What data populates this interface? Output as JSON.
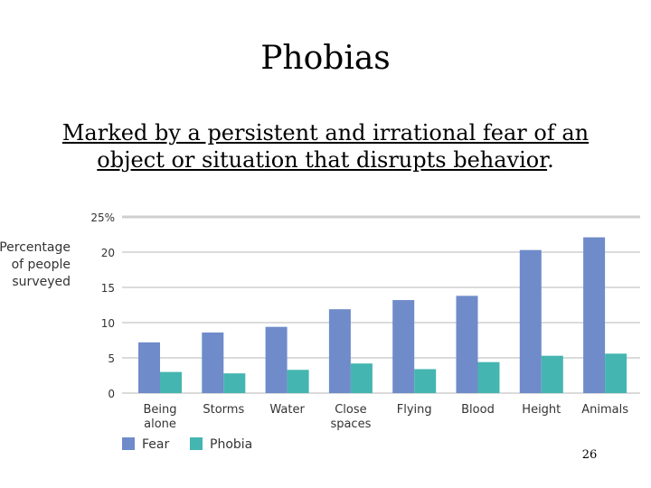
{
  "slide": {
    "title": "Phobias",
    "subtitle_line1": "Marked by a persistent and irrational fear of an",
    "subtitle_line2_main": "object or situation that disrupts behavior",
    "subtitle_line2_end": ".",
    "page_number": "26"
  },
  "colors": {
    "fear": "#6f8bc9",
    "phobia": "#44b5b0",
    "grid": "#cfcfcf",
    "axis_text": "#333333"
  },
  "chart_data": {
    "type": "bar",
    "title": "",
    "ylabel": [
      "Percentage",
      "of people",
      "surveyed"
    ],
    "xlabel": "",
    "ylim": [
      0,
      25
    ],
    "yticks": [
      {
        "value": 0,
        "label": "0"
      },
      {
        "value": 5,
        "label": "5"
      },
      {
        "value": 10,
        "label": "10"
      },
      {
        "value": 15,
        "label": "15"
      },
      {
        "value": 20,
        "label": "20"
      },
      {
        "value": 25,
        "label": "25%"
      }
    ],
    "categories": [
      [
        "Being",
        "alone"
      ],
      [
        "Storms"
      ],
      [
        "Water"
      ],
      [
        "Close",
        "spaces"
      ],
      [
        "Flying"
      ],
      [
        "Blood"
      ],
      [
        "Height"
      ],
      [
        "Animals"
      ]
    ],
    "series": [
      {
        "name": "Fear",
        "values": [
          7.2,
          8.6,
          9.4,
          11.9,
          13.2,
          13.8,
          20.3,
          22.1
        ]
      },
      {
        "name": "Phobia",
        "values": [
          3.0,
          2.8,
          3.3,
          4.2,
          3.4,
          4.4,
          5.3,
          5.6
        ]
      }
    ],
    "grid": true,
    "legend_position": "bottom-left"
  }
}
